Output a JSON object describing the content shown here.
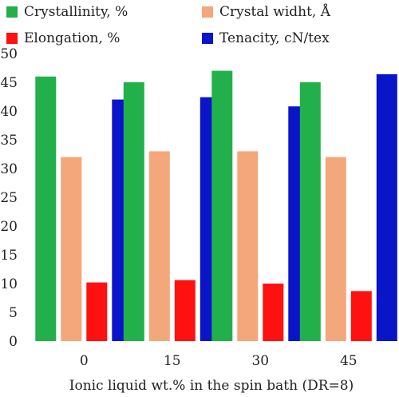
{
  "chart_data": {
    "type": "bar",
    "categories": [
      "0",
      "15",
      "30",
      "45"
    ],
    "series": [
      {
        "name": "Crystallinity, %",
        "color": "#22b04b",
        "values": [
          46,
          45,
          47,
          45
        ]
      },
      {
        "name": "Crystal widht, Å",
        "color": "#f4a77a",
        "values": [
          32,
          33,
          33,
          32
        ]
      },
      {
        "name": "Elongation, %",
        "color": "#ff1111",
        "values": [
          10.2,
          10.6,
          10,
          8.7
        ]
      },
      {
        "name": "Tenacity, cN/tex",
        "color": "#0a14c8",
        "values": [
          42,
          42.4,
          40.8,
          46.4
        ]
      }
    ],
    "y_ticks": [
      "0",
      "5",
      "10",
      "15",
      "20",
      "25",
      "30",
      "35",
      "40",
      "45",
      "50"
    ],
    "ylim": [
      0,
      50
    ],
    "xlabel": "Ionic liquid wt.% in the spin bath (DR=8)",
    "ylabel": "",
    "grid": false,
    "legend_position": "top"
  }
}
